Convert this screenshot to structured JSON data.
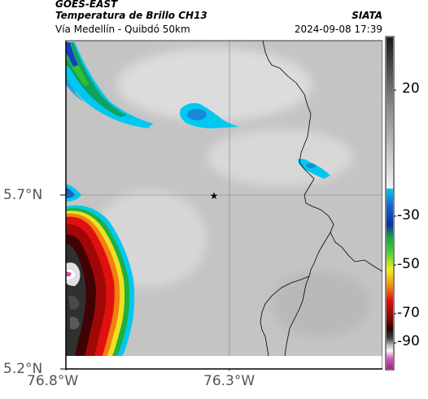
{
  "header": {
    "satellite": "GOES-EAST",
    "product": "Temperatura de Brillo CH13",
    "region": "Vía Medellín - Quibdó 50km",
    "org": "SIATA",
    "datetime": "2024-09-08 17:39"
  },
  "map": {
    "lat_labels": [
      "5.7°N",
      "5.2°N"
    ],
    "lon_labels": [
      "76.8°W",
      "76.3°W"
    ],
    "marker": "star-marker",
    "grid": true
  },
  "colorbar": {
    "ticks": [
      "20",
      "-30",
      "-50",
      "-70",
      "-90"
    ]
  }
}
